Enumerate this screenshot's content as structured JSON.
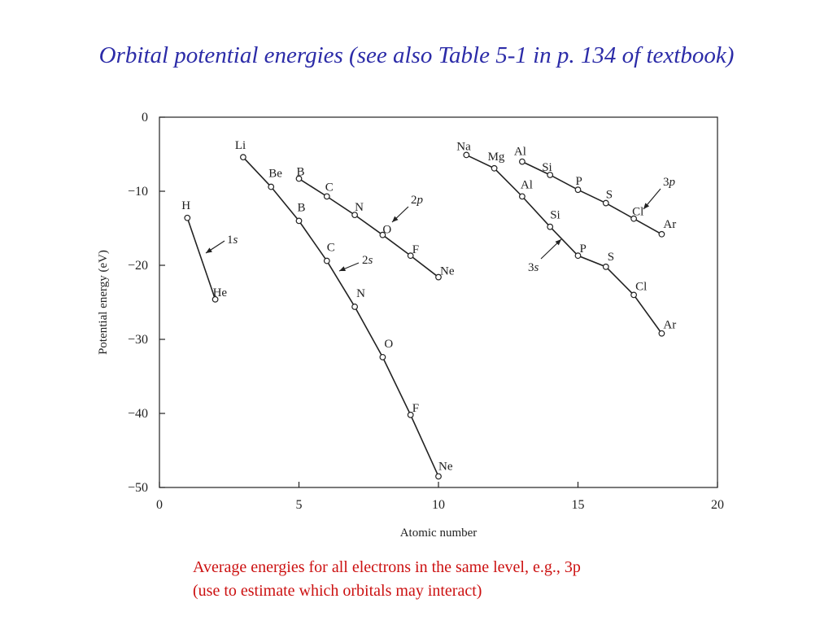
{
  "slide": {
    "title": "Orbital potential energies (see also Table 5-1 in p. 134  of textbook)",
    "caption_line1": "Average energies for all electrons in the same level, e.g., 3p",
    "caption_line2": "(use to estimate which orbitals may interact)"
  },
  "colors": {
    "title": "#2c2ca8",
    "caption": "#cc1111",
    "ink": "#222222"
  },
  "chart_data": {
    "type": "line",
    "title": "",
    "xlabel": "Atomic number",
    "ylabel": "Potential energy (eV)",
    "xlim": [
      0,
      20
    ],
    "ylim": [
      -50,
      0
    ],
    "xticks": [
      0,
      5,
      10,
      15,
      20
    ],
    "yticks": [
      0,
      -10,
      -20,
      -30,
      -40,
      -50
    ],
    "grid": false,
    "series": [
      {
        "name": "1s",
        "points": [
          {
            "x": 1,
            "y": -13.6,
            "label": "H"
          },
          {
            "x": 2,
            "y": -24.6,
            "label": "He"
          }
        ]
      },
      {
        "name": "2s",
        "points": [
          {
            "x": 3,
            "y": -5.4,
            "label": "Li"
          },
          {
            "x": 4,
            "y": -9.4,
            "label": "Be"
          },
          {
            "x": 5,
            "y": -14.0,
            "label": "B"
          },
          {
            "x": 6,
            "y": -19.4,
            "label": "C"
          },
          {
            "x": 7,
            "y": -25.6,
            "label": "N"
          },
          {
            "x": 8,
            "y": -32.4,
            "label": "O"
          },
          {
            "x": 9,
            "y": -40.2,
            "label": "F"
          },
          {
            "x": 10,
            "y": -48.5,
            "label": "Ne"
          }
        ]
      },
      {
        "name": "2p",
        "points": [
          {
            "x": 5,
            "y": -8.3,
            "label": "B"
          },
          {
            "x": 6,
            "y": -10.7,
            "label": "C"
          },
          {
            "x": 7,
            "y": -13.2,
            "label": "N"
          },
          {
            "x": 8,
            "y": -15.9,
            "label": "O"
          },
          {
            "x": 9,
            "y": -18.7,
            "label": "F"
          },
          {
            "x": 10,
            "y": -21.6,
            "label": "Ne"
          }
        ]
      },
      {
        "name": "3s",
        "points": [
          {
            "x": 11,
            "y": -5.1,
            "label": "Na"
          },
          {
            "x": 12,
            "y": -6.9,
            "label": "Mg"
          },
          {
            "x": 13,
            "y": -10.7,
            "label": "Al"
          },
          {
            "x": 14,
            "y": -14.8,
            "label": "Si"
          },
          {
            "x": 15,
            "y": -18.7,
            "label": "P"
          },
          {
            "x": 16,
            "y": -20.2,
            "label": "S"
          },
          {
            "x": 17,
            "y": -24.0,
            "label": "Cl"
          },
          {
            "x": 18,
            "y": -29.2,
            "label": "Ar"
          }
        ]
      },
      {
        "name": "3p",
        "points": [
          {
            "x": 13,
            "y": -6.0,
            "label": "Al"
          },
          {
            "x": 14,
            "y": -7.8,
            "label": "Si"
          },
          {
            "x": 15,
            "y": -9.8,
            "label": "P"
          },
          {
            "x": 16,
            "y": -11.6,
            "label": "S"
          },
          {
            "x": 17,
            "y": -13.7,
            "label": "Cl"
          },
          {
            "x": 18,
            "y": -15.8,
            "label": "Ar"
          }
        ]
      }
    ]
  }
}
